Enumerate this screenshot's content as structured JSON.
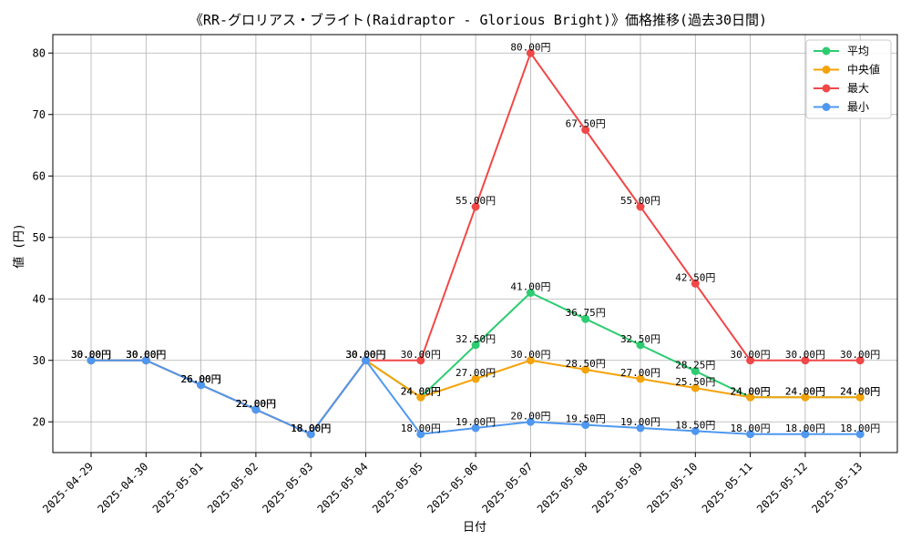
{
  "chart_data": {
    "type": "line",
    "title": "《RR-グロリアス・ブライト(Raidraptor - Glorious Bright)》価格推移(過去30日間)",
    "xlabel": "日付",
    "ylabel": "値 (円)",
    "ylim": [
      15,
      83
    ],
    "yticks": [
      20,
      30,
      40,
      50,
      60,
      70,
      80
    ],
    "grid": true,
    "legend_position": "top-right",
    "value_suffix": "円",
    "categories": [
      "2025-04-29",
      "2025-04-30",
      "2025-05-01",
      "2025-05-02",
      "2025-05-03",
      "2025-05-04",
      "2025-05-05",
      "2025-05-06",
      "2025-05-07",
      "2025-05-08",
      "2025-05-09",
      "2025-05-10",
      "2025-05-11",
      "2025-05-12",
      "2025-05-13"
    ],
    "series": [
      {
        "name": "平均",
        "color": "#2ecc71",
        "values": [
          30,
          30,
          26,
          22,
          18,
          30,
          24,
          32.5,
          41,
          36.75,
          32.5,
          28.25,
          24,
          24,
          24
        ]
      },
      {
        "name": "中央値",
        "color": "#f5a30a",
        "values": [
          30,
          30,
          26,
          22,
          18,
          30,
          24,
          27,
          30,
          28.5,
          27,
          25.5,
          24,
          24,
          24
        ]
      },
      {
        "name": "最大",
        "color": "#f04848",
        "values": [
          30,
          30,
          26,
          22,
          18,
          30,
          30,
          55,
          80,
          67.5,
          55,
          42.5,
          30,
          30,
          30
        ]
      },
      {
        "name": "最小",
        "color": "#4f98f0",
        "values": [
          30,
          30,
          26,
          22,
          18,
          30,
          18,
          19,
          20,
          19.5,
          19,
          18.5,
          18,
          18,
          18
        ]
      }
    ]
  }
}
